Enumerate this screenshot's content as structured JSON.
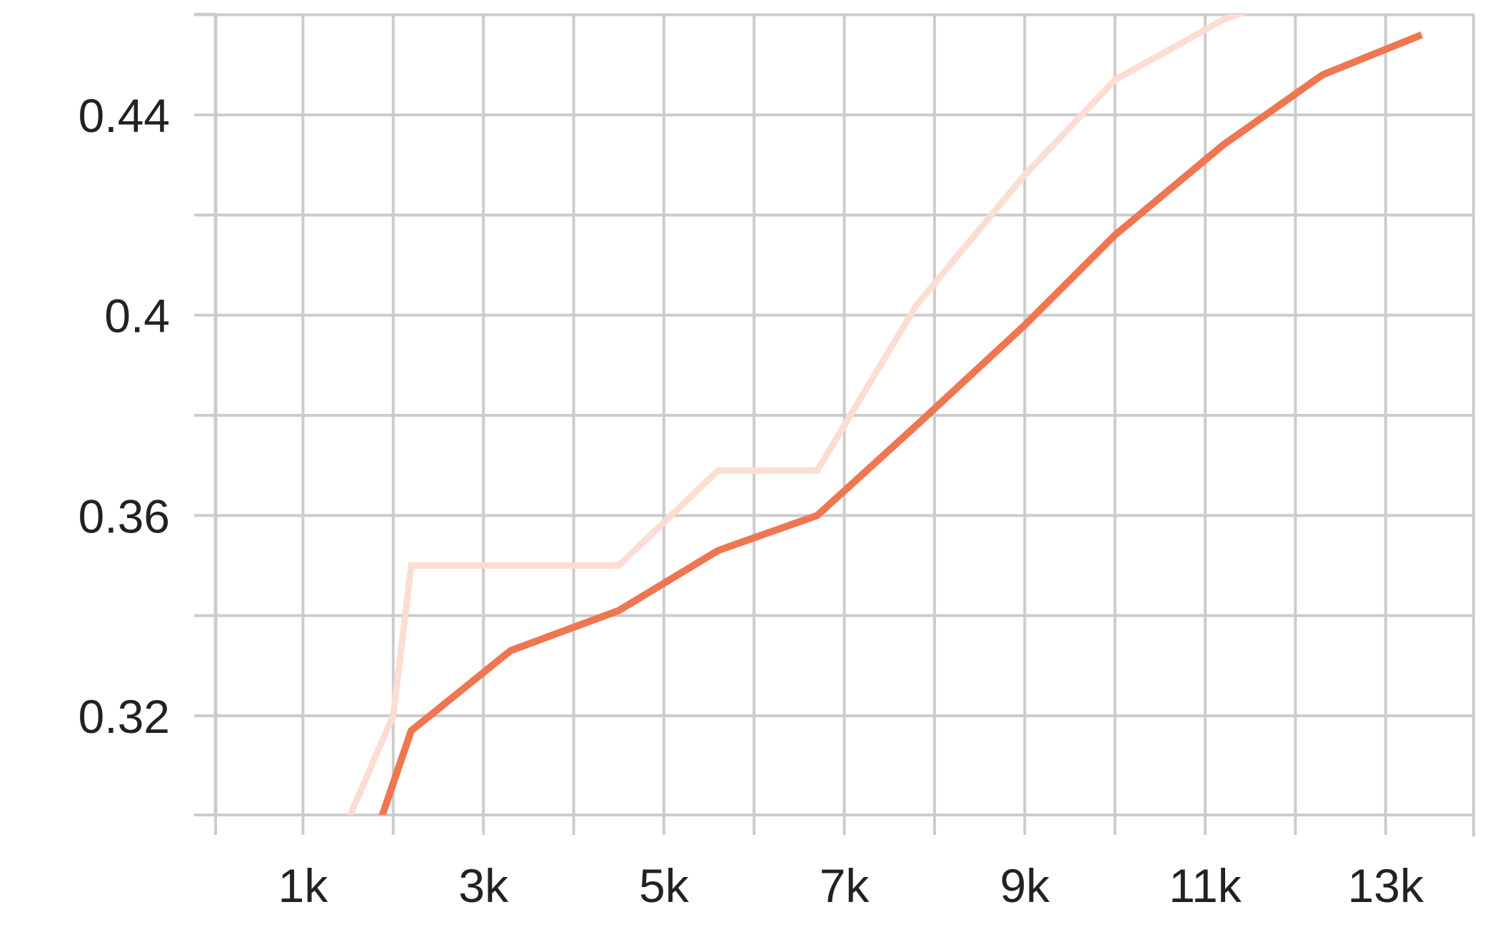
{
  "chart_data": {
    "type": "line",
    "title": "",
    "xlabel": "",
    "ylabel": "",
    "xlim": [
      0,
      14000
    ],
    "ylim": [
      0.3,
      0.46
    ],
    "x_ticks": [
      1000,
      3000,
      5000,
      7000,
      9000,
      11000,
      13000
    ],
    "x_tick_labels": [
      "1k",
      "3k",
      "5k",
      "7k",
      "9k",
      "11k",
      "13k"
    ],
    "x_minor_ticks": [
      0,
      2000,
      4000,
      6000,
      8000,
      10000,
      12000
    ],
    "y_ticks": [
      0.32,
      0.36,
      0.4,
      0.44
    ],
    "y_tick_labels": [
      "0.32",
      "0.36",
      "0.4",
      "0.44"
    ],
    "y_minor_ticks": [
      0.34,
      0.38,
      0.42,
      0.46
    ],
    "grid": true,
    "series": [
      {
        "style": "raw",
        "color": "#fbddd3",
        "x": [
          1400,
          2000,
          2200,
          3300,
          4500,
          5600,
          6700,
          7800,
          9000,
          10000,
          11200,
          11500
        ],
        "values": [
          0.295,
          0.32,
          0.35,
          0.35,
          0.35,
          0.369,
          0.369,
          0.402,
          0.428,
          0.447,
          0.459,
          0.461
        ]
      },
      {
        "style": "smoothed",
        "color": "#ee7752",
        "x": [
          1800,
          2200,
          3300,
          4500,
          5600,
          6700,
          7800,
          9000,
          10000,
          11200,
          12300,
          13400
        ],
        "values": [
          0.296,
          0.317,
          0.333,
          0.341,
          0.353,
          0.36,
          0.378,
          0.398,
          0.416,
          0.434,
          0.448,
          0.456
        ]
      }
    ]
  }
}
